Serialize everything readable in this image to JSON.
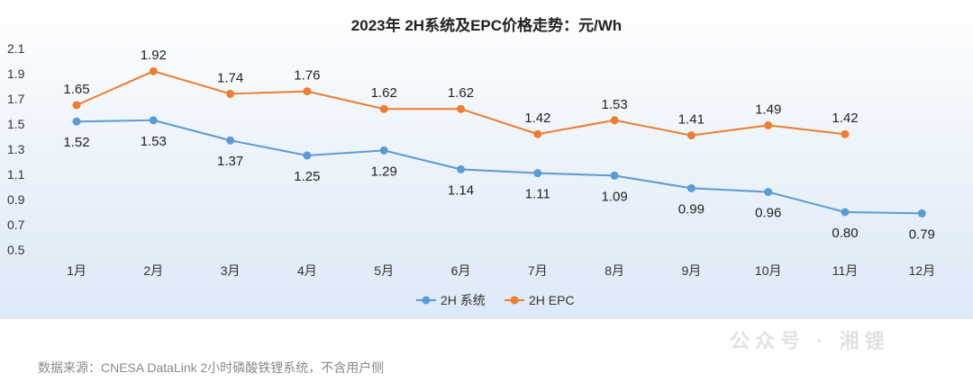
{
  "chart_data": {
    "type": "line",
    "title": "2023年 2H系统及EPC价格走势：元/Wh",
    "categories": [
      "1月",
      "2月",
      "3月",
      "4月",
      "5月",
      "6月",
      "7月",
      "8月",
      "9月",
      "10月",
      "11月",
      "12月"
    ],
    "ylim": [
      0.5,
      2.1
    ],
    "yticks": [
      "2.1",
      "1.9",
      "1.7",
      "1.5",
      "1.3",
      "1.1",
      "0.9",
      "0.7",
      "0.5"
    ],
    "grid": false,
    "legend_position": "bottom",
    "series": [
      {
        "name": "2H 系统",
        "color": "#5b9bd5",
        "values": [
          1.52,
          1.53,
          1.37,
          1.25,
          1.29,
          1.14,
          1.11,
          1.09,
          0.99,
          0.96,
          0.8,
          0.79
        ],
        "labels": [
          "1.52",
          "1.53",
          "1.37",
          "1.25",
          "1.29",
          "1.14",
          "1.11",
          "1.09",
          "0.99",
          "0.96",
          "0.80",
          "0.79"
        ]
      },
      {
        "name": "2H EPC",
        "color": "#ed7d31",
        "values": [
          1.65,
          1.92,
          1.74,
          1.76,
          1.62,
          1.62,
          1.42,
          1.53,
          1.41,
          1.49,
          1.42,
          null
        ],
        "labels": [
          "1.65",
          "1.92",
          "1.74",
          "1.76",
          "1.62",
          "1.62",
          "1.42",
          "1.53",
          "1.41",
          "1.49",
          "1.42",
          ""
        ]
      }
    ]
  },
  "footer": {
    "source": "数据来源：CNESA DataLink 2小时磷酸铁锂系统，不含用户侧",
    "watermark": "公众号 · 湘锂"
  }
}
